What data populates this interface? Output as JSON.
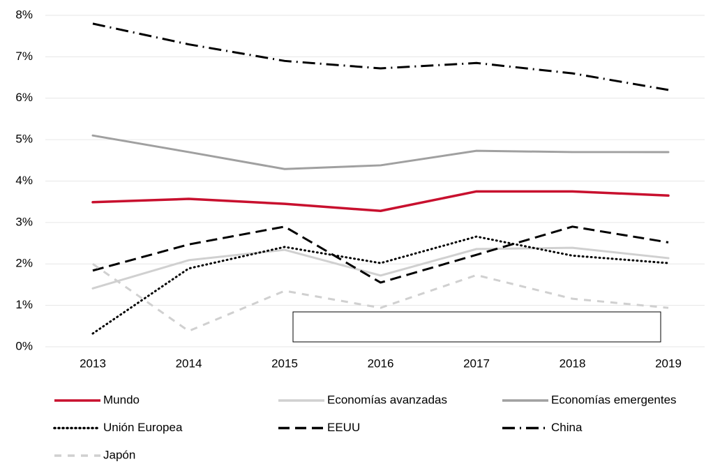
{
  "chart_data": {
    "type": "line",
    "categories": [
      "2013",
      "2014",
      "2015",
      "2016",
      "2017",
      "2018",
      "2019"
    ],
    "ylim": [
      0,
      8
    ],
    "yticks": [
      {
        "value": 0,
        "label": "0%"
      },
      {
        "value": 1,
        "label": "1%"
      },
      {
        "value": 2,
        "label": "2%"
      },
      {
        "value": 3,
        "label": "3%"
      },
      {
        "value": 4,
        "label": "4%"
      },
      {
        "value": 5,
        "label": "5%"
      },
      {
        "value": 6,
        "label": "6%"
      },
      {
        "value": 7,
        "label": "7%"
      },
      {
        "value": 8,
        "label": "8%"
      }
    ],
    "grid": true,
    "series": [
      {
        "name": "Mundo",
        "color": "#c8102e",
        "dash": "none",
        "values": [
          3.49,
          3.57,
          3.45,
          3.28,
          3.75,
          3.75,
          3.65
        ]
      },
      {
        "name": "Economías avanzadas",
        "color": "#d0d0d0",
        "dash": "none",
        "values": [
          1.41,
          2.09,
          2.34,
          1.72,
          2.36,
          2.39,
          2.14
        ]
      },
      {
        "name": "Economías emergentes",
        "color": "#a0a0a0",
        "dash": "none",
        "values": [
          5.1,
          4.7,
          4.29,
          4.38,
          4.73,
          4.7,
          4.7
        ]
      },
      {
        "name": "Unión Europea",
        "color": "#000000",
        "dash": "1 5",
        "values": [
          0.32,
          1.89,
          2.41,
          2.02,
          2.66,
          2.2,
          2.02
        ]
      },
      {
        "name": "EEUU",
        "color": "#000000",
        "dash": "16 8",
        "values": [
          1.84,
          2.47,
          2.9,
          1.55,
          2.22,
          2.9,
          2.52
        ]
      },
      {
        "name": "China",
        "color": "#000000",
        "dash": "18 7 2 7",
        "values": [
          7.8,
          7.3,
          6.9,
          6.72,
          6.85,
          6.6,
          6.2
        ]
      },
      {
        "name": "Japón",
        "color": "#d0d0d0",
        "dash": "10 9",
        "values": [
          2.0,
          0.38,
          1.35,
          0.94,
          1.73,
          1.16,
          0.94
        ]
      }
    ]
  }
}
